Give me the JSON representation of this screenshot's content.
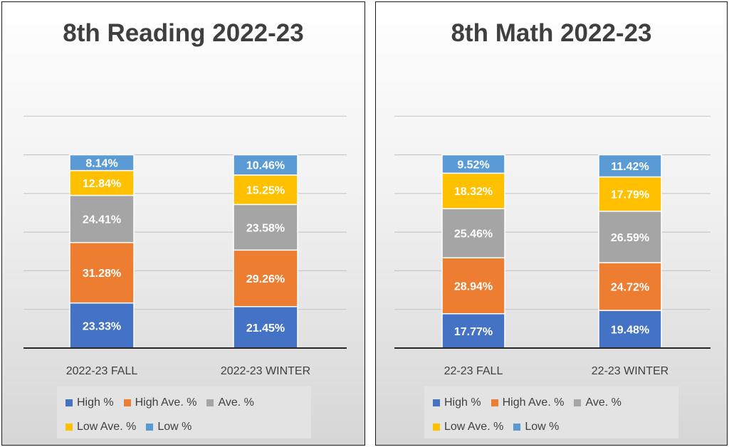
{
  "colors": {
    "High %": "#4472c4",
    "High Ave. %": "#ed7d31",
    "Ave. %": "#a5a5a5",
    "Low Ave. %": "#ffc000",
    "Low %": "#5b9bd5"
  },
  "chart_data": [
    {
      "type": "bar",
      "stacked": true,
      "title": "8th Reading 2022-23",
      "categories": [
        "2022-23 FALL",
        "2022-23 WINTER"
      ],
      "series": [
        {
          "name": "High %",
          "values": [
            23.33,
            21.45
          ],
          "labels": [
            "23.33%",
            "21.45%"
          ]
        },
        {
          "name": "High Ave. %",
          "values": [
            31.28,
            29.26
          ],
          "labels": [
            "31.28%",
            "29.26%"
          ]
        },
        {
          "name": "Ave. %",
          "values": [
            24.41,
            23.58
          ],
          "labels": [
            "24.41%",
            "23.58%"
          ]
        },
        {
          "name": "Low Ave. %",
          "values": [
            12.84,
            15.25
          ],
          "labels": [
            "12.84%",
            "15.25%"
          ]
        },
        {
          "name": "Low %",
          "values": [
            8.14,
            10.46
          ],
          "labels": [
            "8.14%",
            "10.46%"
          ]
        }
      ],
      "ylim": [
        0,
        120
      ],
      "grid": true,
      "legend": "bottom"
    },
    {
      "type": "bar",
      "stacked": true,
      "title": "8th Math 2022-23",
      "categories": [
        "22-23 FALL",
        "22-23 WINTER"
      ],
      "series": [
        {
          "name": "High %",
          "values": [
            17.77,
            19.48
          ],
          "labels": [
            "17.77%",
            "19.48%"
          ]
        },
        {
          "name": "High Ave. %",
          "values": [
            28.94,
            24.72
          ],
          "labels": [
            "28.94%",
            "24.72%"
          ]
        },
        {
          "name": "Ave. %",
          "values": [
            25.46,
            26.59
          ],
          "labels": [
            "25.46%",
            "26.59%"
          ]
        },
        {
          "name": "Low Ave. %",
          "values": [
            18.32,
            17.79
          ],
          "labels": [
            "18.32%",
            "17.79%"
          ]
        },
        {
          "name": "Low %",
          "values": [
            9.52,
            11.42
          ],
          "labels": [
            "9.52%",
            "11.42%"
          ]
        }
      ],
      "ylim": [
        0,
        120
      ],
      "grid": true,
      "legend": "bottom"
    }
  ]
}
